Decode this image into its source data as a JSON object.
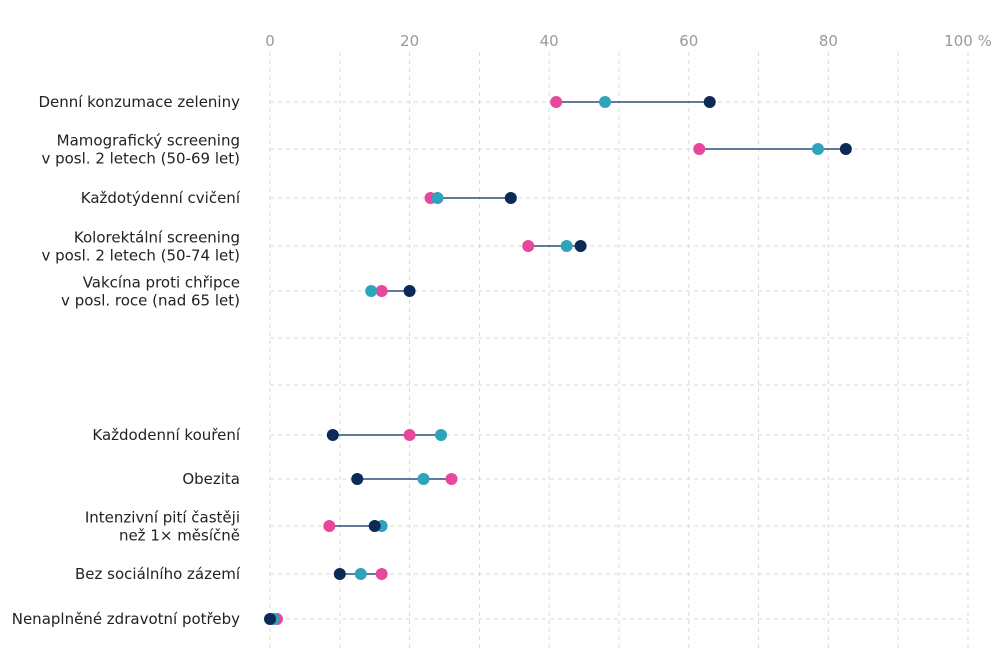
{
  "chart_data": {
    "type": "dot-range",
    "xlim": [
      0,
      100
    ],
    "x_ticks": [
      "0",
      "20",
      "40",
      "60",
      "80",
      "100 %"
    ],
    "series_colors": [
      "#e8489b",
      "#2ea3b9",
      "#0b2a57"
    ],
    "categories": [
      {
        "lines": [
          "Denní konzumace zeleniny"
        ],
        "values": [
          41,
          48,
          63
        ]
      },
      {
        "lines": [
          "Mamografický screening",
          "v posl. 2 letech (50-69 let)"
        ],
        "values": [
          61.5,
          78.5,
          82.5
        ]
      },
      {
        "lines": [
          "Každotýdenní cvičení"
        ],
        "values": [
          23,
          24,
          34.5
        ]
      },
      {
        "lines": [
          "Kolorektální screening",
          "v posl. 2 letech (50-74 let)"
        ],
        "values": [
          37,
          42.5,
          44.5
        ]
      },
      {
        "lines": [
          "Vakcína proti chřipce",
          "v posl. roce (nad 65 let)"
        ],
        "values": [
          16,
          14.5,
          20
        ]
      },
      {
        "lines": [],
        "values": []
      },
      {
        "lines": [],
        "values": []
      },
      {
        "lines": [
          "Každodenní kouření"
        ],
        "values": [
          20,
          24.5,
          9
        ]
      },
      {
        "lines": [
          "Obezita"
        ],
        "values": [
          26,
          22,
          12.5
        ]
      },
      {
        "lines": [
          "Intenzivní pití častěji",
          "než 1× měsíčně"
        ],
        "values": [
          8.5,
          16,
          15
        ]
      },
      {
        "lines": [
          "Bez sociálního zázemí"
        ],
        "values": [
          16,
          13,
          10
        ]
      },
      {
        "lines": [
          "Nenaplněné zdravotní potřeby"
        ],
        "values": [
          1,
          0.5,
          0
        ]
      }
    ]
  }
}
